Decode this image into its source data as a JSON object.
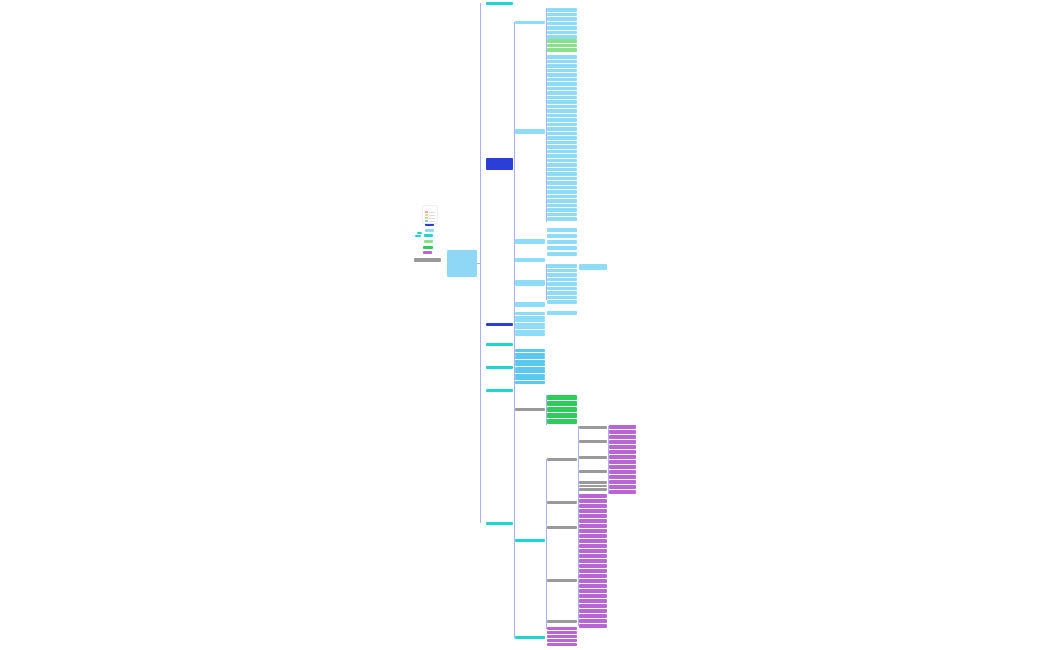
{
  "colors": {
    "root": "#8fd8f5",
    "main_branch": "#1ed6d0",
    "highlight_branch": "#2b3fd6",
    "detail": "#8fdcf8",
    "list": "#5bc8f0",
    "green": "#2ecc5a",
    "light_green": "#8be08a",
    "gray": "#9a9a9a",
    "purple": "#b965d3",
    "connector": "#a9b1f2"
  },
  "legend": {
    "swatches": [
      "#f7a8a8",
      "#f7d48a",
      "#c8e08a",
      "#8ad0e0"
    ]
  }
}
